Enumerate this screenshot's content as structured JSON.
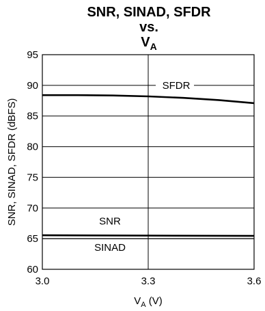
{
  "chart_data": {
    "type": "line",
    "title_lines": [
      "SNR, SINAD, SFDR",
      "vs."
    ],
    "title_var": {
      "main": "V",
      "sub": "A"
    },
    "xlabel": {
      "main": "V",
      "sub": "A",
      "unit": " (V)"
    },
    "ylabel": "SNR, SINAD, SFDR (dBFS)",
    "xlim": [
      3.0,
      3.6
    ],
    "ylim": [
      60,
      95
    ],
    "x_ticks": [
      "3.0",
      "3.3",
      "3.6"
    ],
    "x_tick_values": [
      3.0,
      3.3,
      3.6
    ],
    "y_ticks": [
      "60",
      "65",
      "70",
      "75",
      "80",
      "85",
      "90",
      "95"
    ],
    "y_tick_values": [
      60,
      65,
      70,
      75,
      80,
      85,
      90,
      95
    ],
    "grid": true,
    "series": [
      {
        "name": "SFDR",
        "x": [
          3.0,
          3.1,
          3.2,
          3.3,
          3.4,
          3.5,
          3.6
        ],
        "y": [
          88.4,
          88.4,
          88.35,
          88.2,
          87.95,
          87.6,
          87.1
        ],
        "color": "#000000",
        "width": 2.6
      },
      {
        "name": "SNR",
        "x": [
          3.0,
          3.3,
          3.6
        ],
        "y": [
          65.55,
          65.5,
          65.45
        ],
        "color": "#000000",
        "width": 2.6
      },
      {
        "name": "SINAD",
        "x": [
          3.0,
          3.3,
          3.6
        ],
        "y": [
          65.0,
          65.0,
          65.0
        ],
        "color": "#000000",
        "width": 1.2
      }
    ]
  }
}
